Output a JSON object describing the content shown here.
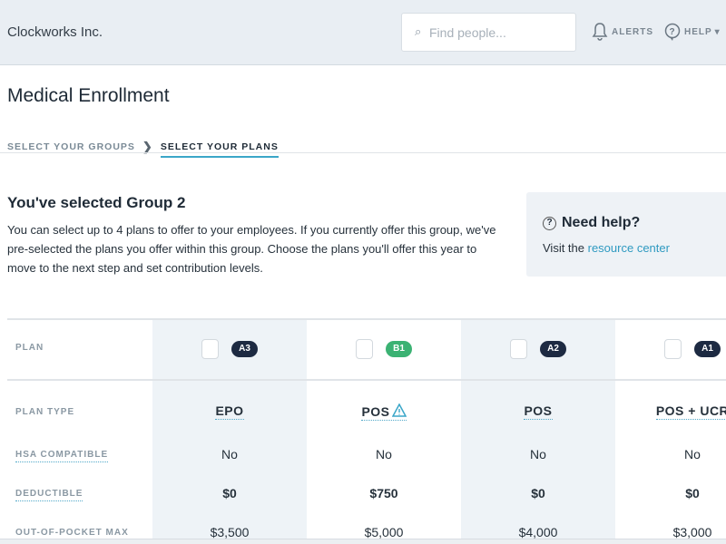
{
  "header": {
    "brand": "Clockworks Inc.",
    "search_placeholder": "Find people...",
    "alerts_label": "ALERTS",
    "help_label": "HELP"
  },
  "page": {
    "title": "Medical Enrollment",
    "breadcrumb": [
      "SELECT YOUR GROUPS",
      "SELECT YOUR PLANS"
    ]
  },
  "intro": {
    "heading": "You've selected Group 2",
    "text": "You can select up to 4 plans to offer to your employees. If you currently offer this group, we've pre-selected the plans you offer within this group. Choose the plans you'll offer this year to move to the next step and set contribution levels."
  },
  "help_box": {
    "title": "Need help?",
    "text": "Visit the ",
    "link": "resource center"
  },
  "table": {
    "row_labels": [
      "PLAN",
      "PLAN TYPE",
      "HSA COMPATIBLE",
      "DEDUCTIBLE",
      "OUT-OF-POCKET MAX"
    ],
    "plans": [
      {
        "badge": "A3",
        "badge_color": "#1d2a42",
        "type": "EPO",
        "warning": false,
        "hsa": "No",
        "deductible": "$0",
        "oop_max": "$3,500"
      },
      {
        "badge": "B1",
        "badge_color": "#3bb273",
        "type": "POS",
        "warning": true,
        "hsa": "No",
        "deductible": "$750",
        "oop_max": "$5,000"
      },
      {
        "badge": "A2",
        "badge_color": "#1d2a42",
        "type": "POS",
        "warning": false,
        "hsa": "No",
        "deductible": "$0",
        "oop_max": "$4,000"
      },
      {
        "badge": "A1",
        "badge_color": "#1d2a42",
        "type": "POS + UCR",
        "warning": false,
        "hsa": "No",
        "deductible": "$0",
        "oop_max": "$3,000"
      }
    ]
  }
}
